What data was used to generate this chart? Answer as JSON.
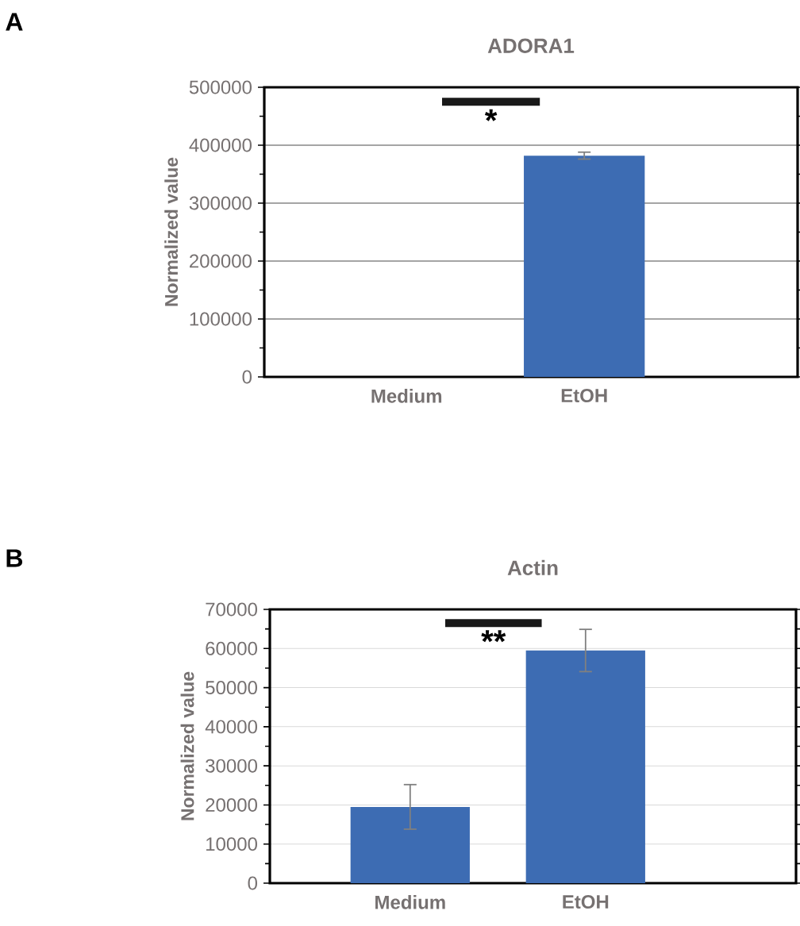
{
  "chart_data": [
    {
      "type": "bar",
      "title": "ADORA1",
      "ylabel": "Normalized value",
      "categories": [
        "Medium",
        "EtOH"
      ],
      "values": [
        0,
        382000
      ],
      "errors": [
        null,
        6000
      ],
      "color": "#3d6cb3",
      "ylim": [
        0,
        500000
      ],
      "yticks": [
        0,
        100000,
        200000,
        300000,
        400000,
        500000
      ],
      "grid": "y",
      "annotations": [
        "A",
        "*"
      ]
    },
    {
      "type": "bar",
      "title": "Actin",
      "ylabel": "Normalized value",
      "categories": [
        "Medium",
        "EtOH"
      ],
      "values": [
        19500,
        59500
      ],
      "errors": [
        5700,
        5400
      ],
      "color": "#3d6cb3",
      "ylim": [
        0,
        70000
      ],
      "yticks": [
        0,
        10000,
        20000,
        30000,
        40000,
        50000,
        60000,
        70000
      ],
      "grid": "y",
      "annotations": [
        "B",
        "**"
      ]
    }
  ]
}
